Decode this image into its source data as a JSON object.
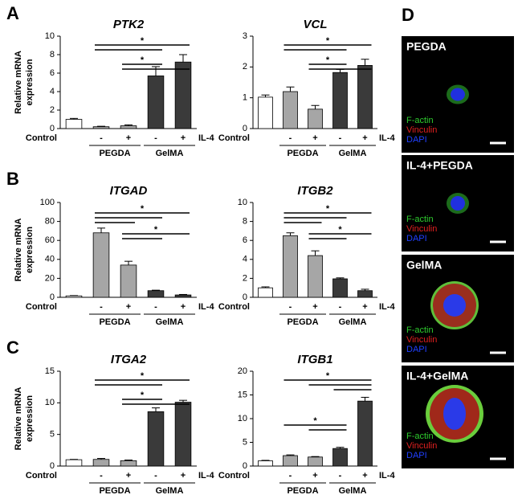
{
  "panel_letters": [
    "A",
    "B",
    "C",
    "D"
  ],
  "chart_data": [
    {
      "type": "bar",
      "title": "PTK2",
      "ylabel": [
        "Relative mRNA",
        "expression"
      ],
      "categories": [
        "Control",
        "-",
        "+",
        "-",
        "+"
      ],
      "values": [
        1.0,
        0.2,
        0.3,
        5.7,
        7.2
      ],
      "errors": [
        0.1,
        0.05,
        0.1,
        1.0,
        0.8
      ],
      "colors": [
        "#ffffff",
        "#a6a6a6",
        "#a6a6a6",
        "#3a3a3a",
        "#3a3a3a"
      ],
      "groups": [
        "PEGDA",
        "GelMA"
      ],
      "treatment_label": "IL-4",
      "annotations": [
        "*",
        "*"
      ],
      "ylim": [
        0,
        10
      ],
      "yticks": [
        0,
        2,
        4,
        6,
        8,
        10
      ]
    },
    {
      "type": "bar",
      "title": "VCL",
      "categories": [
        "Control",
        "-",
        "+",
        "-",
        "+"
      ],
      "values": [
        1.02,
        1.2,
        0.63,
        1.82,
        2.05
      ],
      "errors": [
        0.07,
        0.15,
        0.12,
        0.1,
        0.2
      ],
      "colors": [
        "#ffffff",
        "#a6a6a6",
        "#a6a6a6",
        "#3a3a3a",
        "#3a3a3a"
      ],
      "groups": [
        "PEGDA",
        "GelMA"
      ],
      "treatment_label": "IL-4",
      "annotations": [
        "*",
        "*"
      ],
      "ylim": [
        0,
        3
      ],
      "yticks": [
        0,
        1,
        2,
        3
      ]
    },
    {
      "type": "bar",
      "title": "ITGAD",
      "ylabel": [
        "Relative mRNA",
        "expression"
      ],
      "categories": [
        "Control",
        "-",
        "+",
        "-",
        "+"
      ],
      "values": [
        1.5,
        68,
        34,
        7,
        2.5
      ],
      "errors": [
        0.3,
        5,
        4,
        0.5,
        0.5
      ],
      "colors": [
        "#ffffff",
        "#a6a6a6",
        "#a6a6a6",
        "#3a3a3a",
        "#3a3a3a"
      ],
      "groups": [
        "PEGDA",
        "GelMA"
      ],
      "treatment_label": "IL-4",
      "annotations": [
        "*",
        "*"
      ],
      "ylim": [
        0,
        100
      ],
      "yticks": [
        0,
        20,
        40,
        60,
        80,
        100
      ]
    },
    {
      "type": "bar",
      "title": "ITGB2",
      "categories": [
        "Control",
        "-",
        "+",
        "-",
        "+"
      ],
      "values": [
        1.0,
        6.5,
        4.4,
        1.95,
        0.7
      ],
      "errors": [
        0.1,
        0.3,
        0.5,
        0.1,
        0.15
      ],
      "colors": [
        "#ffffff",
        "#a6a6a6",
        "#a6a6a6",
        "#3a3a3a",
        "#3a3a3a"
      ],
      "groups": [
        "PEGDA",
        "GelMA"
      ],
      "treatment_label": "IL-4",
      "annotations": [
        "*",
        "*"
      ],
      "ylim": [
        0,
        10
      ],
      "yticks": [
        0,
        2,
        4,
        6,
        8,
        10
      ]
    },
    {
      "type": "bar",
      "title": "ITGA2",
      "ylabel": [
        "Relative mRNA",
        "expression"
      ],
      "categories": [
        "Control",
        "-",
        "+",
        "-",
        "+"
      ],
      "values": [
        1.0,
        1.05,
        0.85,
        8.6,
        10.1
      ],
      "errors": [
        0.05,
        0.15,
        0.1,
        0.6,
        0.3
      ],
      "colors": [
        "#ffffff",
        "#a6a6a6",
        "#a6a6a6",
        "#3a3a3a",
        "#3a3a3a"
      ],
      "groups": [
        "PEGDA",
        "GelMA"
      ],
      "treatment_label": "IL-4",
      "annotations": [
        "*",
        "*"
      ],
      "ylim": [
        0,
        15
      ],
      "yticks": [
        0,
        5,
        10,
        15
      ]
    },
    {
      "type": "bar",
      "title": "ITGB1",
      "categories": [
        "Control",
        "-",
        "+",
        "-",
        "+"
      ],
      "values": [
        1.1,
        2.2,
        1.9,
        3.7,
        13.7
      ],
      "errors": [
        0.1,
        0.15,
        0.1,
        0.25,
        0.8
      ],
      "colors": [
        "#ffffff",
        "#a6a6a6",
        "#a6a6a6",
        "#3a3a3a",
        "#3a3a3a"
      ],
      "groups": [
        "PEGDA",
        "GelMA"
      ],
      "treatment_label": "IL-4",
      "annotations": [
        "*",
        "*"
      ],
      "ylim": [
        0,
        20
      ],
      "yticks": [
        0,
        5,
        10,
        15,
        20
      ]
    }
  ],
  "micrographs": [
    {
      "label": "PEGDA",
      "stains": [
        "F-actin",
        "Vinculin",
        "DAPI"
      ]
    },
    {
      "label": "IL-4+PEGDA",
      "stains": [
        "F-actin",
        "Vinculin",
        "DAPI"
      ]
    },
    {
      "label": "GelMA",
      "stains": [
        "F-actin",
        "Vinculin",
        "DAPI"
      ]
    },
    {
      "label": "IL-4+GelMA",
      "stains": [
        "F-actin",
        "Vinculin",
        "DAPI"
      ]
    }
  ]
}
